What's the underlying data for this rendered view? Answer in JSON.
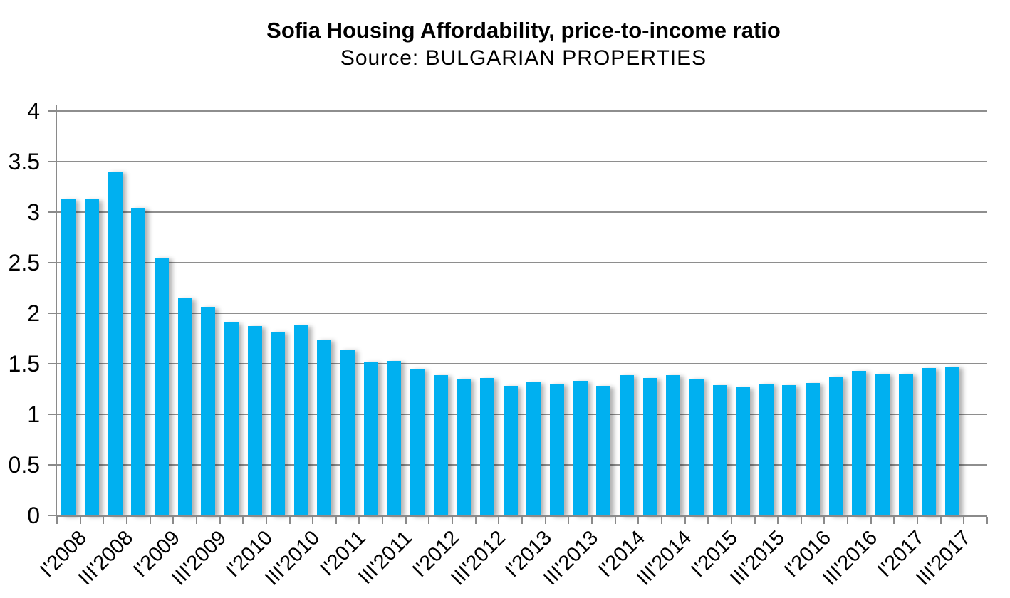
{
  "header": {
    "title": "Sofia Housing Affordability, price-to-income ratio",
    "subtitle": "Source: BULGARIAN PROPERTIES"
  },
  "chart_data": {
    "type": "bar",
    "title": "Sofia Housing Affordability, price-to-income ratio",
    "subtitle": "Source: BULGARIAN PROPERTIES",
    "categories": [
      "I'2008",
      "II'2008",
      "III'2008",
      "IV'2008",
      "I'2009",
      "II'2009",
      "III'2009",
      "IV'2009",
      "I'2010",
      "II'2010",
      "III'2010",
      "IV'2010",
      "I'2011",
      "II'2011",
      "III'2011",
      "IV'2011",
      "I'2012",
      "II'2012",
      "III'2012",
      "IV'2012",
      "I'2013",
      "II'2013",
      "III'2013",
      "IV'2013",
      "I'2014",
      "II'2014",
      "III'2014",
      "IV'2014",
      "I'2015",
      "II'2015",
      "III'2015",
      "IV'2015",
      "I'2016",
      "II'2016",
      "III'2016",
      "IV'2016",
      "I'2017",
      "II'2017",
      "III'2017"
    ],
    "values": [
      3.13,
      3.13,
      3.4,
      3.04,
      2.55,
      2.15,
      2.06,
      1.91,
      1.87,
      1.82,
      1.88,
      1.74,
      1.64,
      1.52,
      1.53,
      1.45,
      1.39,
      1.35,
      1.36,
      1.28,
      1.32,
      1.3,
      1.33,
      1.28,
      1.39,
      1.36,
      1.39,
      1.35,
      1.29,
      1.27,
      1.3,
      1.29,
      1.31,
      1.37,
      1.43,
      1.4,
      1.4,
      1.46,
      1.47
    ],
    "x_axis": {
      "visible_tick_labels": [
        "I'2008",
        "III'2008",
        "I'2009",
        "III'2009",
        "I'2010",
        "III'2010",
        "I'2011",
        "III'2011",
        "I'2012",
        "III'2012",
        "I'2013",
        "III'2013",
        "I'2014",
        "III'2014",
        "I'2015",
        "III'2015",
        "I'2016",
        "III'2016",
        "I'2017",
        "III'2017"
      ],
      "label_every_n": 2,
      "label_rotation_deg": -45,
      "trailing_empty_categories": 1
    },
    "y_axis": {
      "min": 0,
      "max": 4,
      "step": 0.5,
      "tick_labels": [
        "0",
        "0.5",
        "1",
        "1.5",
        "2",
        "2.5",
        "3",
        "3.5",
        "4"
      ]
    },
    "grid": "horizontal",
    "legend": "none",
    "colors": {
      "bar": "#00B0F0",
      "gridline": "#8E8E8E",
      "axis": "#8A8A8A",
      "text": "#000000"
    }
  }
}
